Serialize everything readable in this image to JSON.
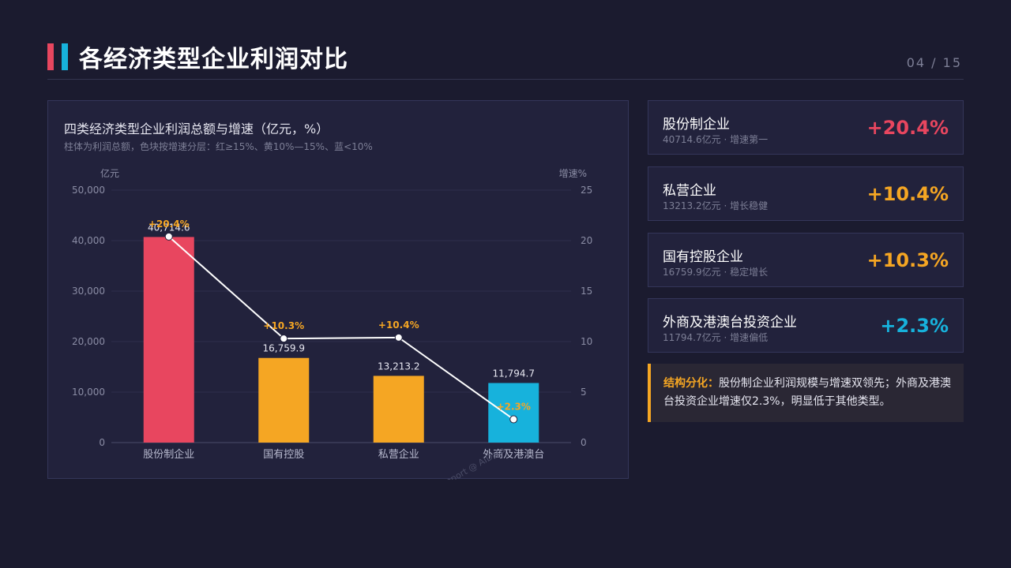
{
  "header": {
    "title": "各经济类型企业利润对比",
    "page_number": "04 / 15"
  },
  "chart_panel": {
    "title": "四类经济类型企业利润总额与增速（亿元，%）",
    "subtitle": "柱体为利润总额，色块按增速分层：红≥15%、黄10%—15%、蓝<10%",
    "watermark": "Report @ AIData"
  },
  "chart_data": {
    "type": "bar",
    "categories": [
      "股份制企业",
      "国有控股",
      "私营企业",
      "外商及港澳台"
    ],
    "series": [
      {
        "values": [
          40714.6,
          16759.9,
          13213.2,
          11794.7
        ]
      },
      {
        "type": "line",
        "axis": "right",
        "values": [
          20.4,
          10.3,
          10.4,
          2.3
        ]
      }
    ],
    "bar_value_labels": [
      "40,714.6",
      "16,759.9",
      "13,213.2",
      "11,794.7"
    ],
    "rate_labels": [
      "+20.4%",
      "+10.3%",
      "+10.4%",
      "+2.3%"
    ],
    "bar_colors": [
      "#e8465f",
      "#f5a623",
      "#f5a623",
      "#17b2dc"
    ],
    "rate_label_color": "#f5a623",
    "ylabel": "亿元",
    "y2label": "增速%",
    "ylim": [
      0,
      50000
    ],
    "y2lim": [
      0,
      25
    ],
    "yticks": [
      "0",
      "10,000",
      "20,000",
      "30,000",
      "40,000",
      "50,000"
    ],
    "y2ticks": [
      "0",
      "5",
      "10",
      "15",
      "20",
      "25"
    ],
    "grid": true
  },
  "cards": [
    {
      "name": "股份制企业",
      "desc": "40714.6亿元 · 增速第一",
      "rate": "+20.4%",
      "color": "#e8465f"
    },
    {
      "name": "私营企业",
      "desc": "13213.2亿元 · 增长稳健",
      "rate": "+10.4%",
      "color": "#f5a623"
    },
    {
      "name": "国有控股企业",
      "desc": "16759.9亿元 · 稳定增长",
      "rate": "+10.3%",
      "color": "#f5a623"
    },
    {
      "name": "外商及港澳台投资企业",
      "desc": "11794.7亿元 · 增速偏低",
      "rate": "+2.3%",
      "color": "#17b2dc"
    }
  ],
  "note": {
    "label": "结构分化：",
    "text": "股份制企业利润规模与增速双领先；外商及港澳台投资企业增速仅2.3%，明显低于其他类型。"
  }
}
